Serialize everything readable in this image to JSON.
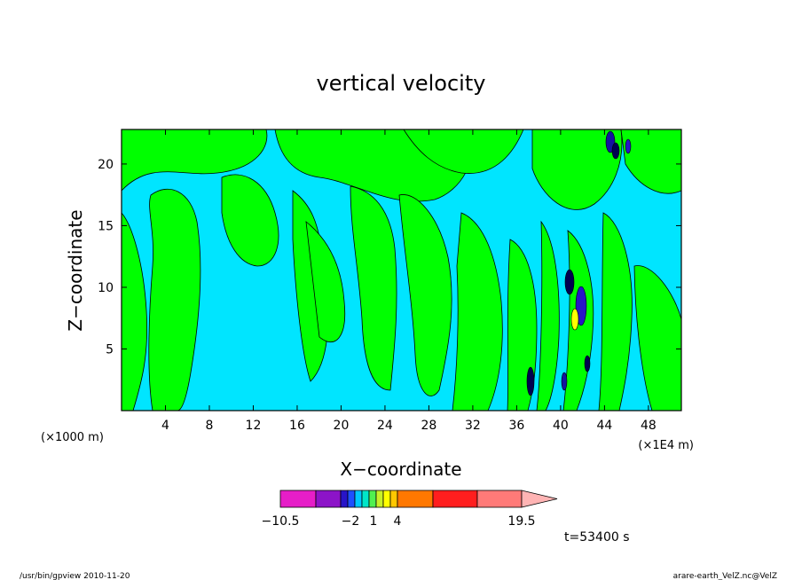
{
  "chart_data": {
    "type": "contour",
    "title": "vertical velocity",
    "xlabel": "X−coordinate",
    "ylabel": "Z−coordinate",
    "x_unit_left": "(×1000 m)",
    "x_unit_right": "(×1E4 m)",
    "x_ticks": [
      "4",
      "8",
      "12",
      "16",
      "20",
      "24",
      "28",
      "32",
      "36",
      "40",
      "44",
      "48"
    ],
    "y_ticks": [
      "5",
      "10",
      "15",
      "20"
    ],
    "xlim": [
      0,
      51
    ],
    "ylim": [
      0,
      22.8
    ],
    "dominant_fields": {
      "positive": "#00ff00",
      "negative": "#00e5ff"
    },
    "colorbar": {
      "labels": [
        "−10.5",
        "−2",
        "1",
        "4",
        "19.5"
      ],
      "colors": [
        "#e61ec8",
        "#8c14c8",
        "#2814c8",
        "#1e50ff",
        "#00c8ff",
        "#00e6c8",
        "#50f050",
        "#c8f028",
        "#ffff00",
        "#ffc800",
        "#ff7800",
        "#ff1e1e",
        "#ff7a78",
        "#ffb4b4"
      ],
      "extend": "max"
    },
    "time_label": "t=53400 s"
  },
  "footer": {
    "left": "/usr/bin/gpview   2010-11-20",
    "right": "arare-earth_VelZ.nc@VelZ"
  }
}
